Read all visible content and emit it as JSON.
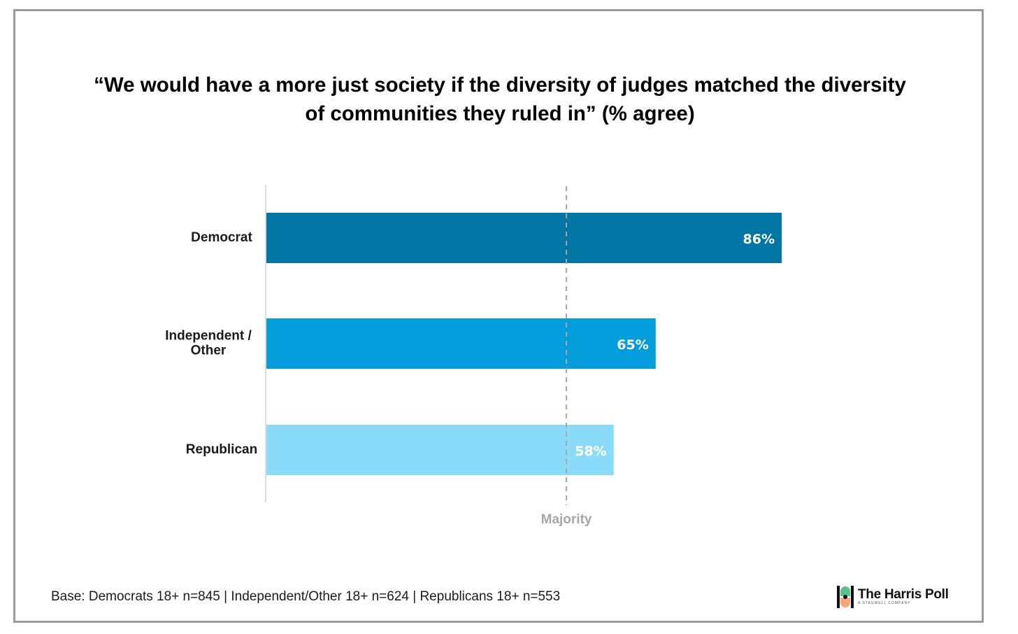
{
  "chart_data": {
    "type": "bar",
    "orientation": "horizontal",
    "title": "“We would have a more just society if the diversity of judges matched the diversity of communities they ruled in” (% agree)",
    "categories": [
      "Democrat",
      "Independent /\nOther",
      "Republican"
    ],
    "values": [
      86,
      65,
      58
    ],
    "value_labels": [
      "86%",
      "65%",
      "58%"
    ],
    "bar_colors": [
      "#0176a5",
      "#039ddb",
      "#8adbfa"
    ],
    "xlim": [
      0,
      100
    ],
    "reference_line": {
      "value": 50,
      "label": "Majority",
      "style": "dashed",
      "color": "#a6a6a6"
    },
    "grid": false
  },
  "footer": {
    "base_note": "Base: Democrats 18+ n=845 | Independent/Other 18+ n=624 | Republicans 18+ n=553"
  },
  "logo": {
    "name": "The Harris Poll",
    "tagline": "A STAGWELL COMPANY",
    "colors": {
      "green": "#5bbf8f",
      "orange": "#f4a77a",
      "dark": "#111111"
    }
  }
}
